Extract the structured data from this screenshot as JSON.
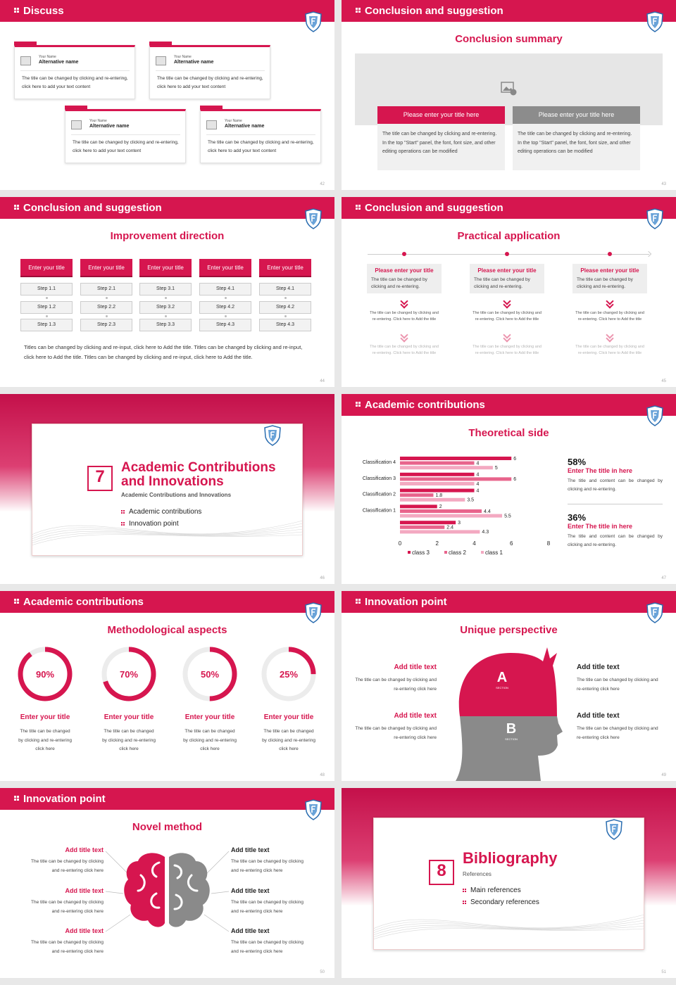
{
  "slides": [
    {
      "page": "42",
      "header": "Discuss",
      "cards": [
        {
          "label": "Your Name",
          "name": "Alternative name",
          "text": "The title can be changed by clicking and re-entering, click here to add your text content"
        },
        {
          "label": "Your Name",
          "name": "Alternative name",
          "text": "The title can be changed by clicking and re-entering, click here to add your text content"
        },
        {
          "label": "Your Name",
          "name": "Alternative name",
          "text": "The title can be changed by clicking and re-entering, click here to add your text content"
        },
        {
          "label": "Your Name",
          "name": "Alternative name",
          "text": "The title can be changed by clicking and re-entering, click here to add your text content"
        }
      ]
    },
    {
      "page": "43",
      "header": "Conclusion and suggestion",
      "title": "Conclusion summary",
      "columns": [
        {
          "title": "Please enter your title here",
          "text": "The title can be changed by clicking and re-entering. In the top \"Start\" panel, the font, font size, and other editing operations can be modified"
        },
        {
          "title": "Please enter your title here",
          "text": "The title can be changed by clicking and re-entering. In the top \"Start\" panel, the font, font size, and other editing operations can be modified"
        }
      ]
    },
    {
      "page": "44",
      "header": "Conclusion and suggestion",
      "title": "Improvement direction",
      "columns": [
        {
          "title": "Enter your title",
          "steps": [
            "Step 1.1",
            "Step 1.2",
            "Step 1.3"
          ]
        },
        {
          "title": "Enter your title",
          "steps": [
            "Step 2.1",
            "Step 2.2",
            "Step 2.3"
          ]
        },
        {
          "title": "Enter your title",
          "steps": [
            "Step 3.1",
            "Step 3.2",
            "Step 3.3"
          ]
        },
        {
          "title": "Enter your title",
          "steps": [
            "Step 4.1",
            "Step 4.2",
            "Step 4.3"
          ]
        },
        {
          "title": "Enter your title",
          "steps": [
            "Step 4.1",
            "Step 4.2",
            "Step 4.3"
          ]
        }
      ],
      "text": "Titles can be changed by clicking and re-input, click here to Add the title. Titles can be changed by clicking and re-input, click here to Add the title. Titles can be changed by clicking and re-input, click here to Add the title."
    },
    {
      "page": "45",
      "header": "Conclusion and suggestion",
      "title": "Practical application",
      "columns": [
        {
          "title": "Please enter your title",
          "text": "The title can be changed by clicking and re-entering.",
          "details": [
            "The title can be changed by clicking and re-entering. Click here to Add the title",
            "The title can be changed by clicking and re-entering. Click here to Add the title"
          ]
        },
        {
          "title": "Please enter your title",
          "text": "The title can be changed by clicking and re-entering.",
          "details": [
            "The title can be changed by clicking and re-entering. Click here to Add the title",
            "The title can be changed by clicking and re-entering. Click here to Add the title"
          ]
        },
        {
          "title": "Please enter your title",
          "text": "The title can be changed by clicking and re-entering.",
          "details": [
            "The title can be changed by clicking and re-entering. Click here to Add the title",
            "The title can be changed by clicking and re-entering. Click here to Add the title"
          ]
        }
      ]
    },
    {
      "page": "46",
      "number": "7",
      "title": "Academic Contributions and Innovations",
      "subtitle": "Academic Contributions and Innovations",
      "items": [
        "Academic contributions",
        "Innovation point"
      ]
    },
    {
      "page": "47",
      "header": "Academic contributions",
      "title": "Theoretical side",
      "chart": {
        "type": "bar",
        "orientation": "horizontal",
        "categories": [
          "Classification 4",
          "Classification 3",
          "Classification 2",
          "Classification 1",
          null
        ],
        "series": [
          {
            "name": "class 3",
            "color": "#d6164f",
            "values": [
              6,
              4,
              4,
              2,
              3
            ]
          },
          {
            "name": "class 2",
            "color": "#e8648c",
            "values": [
              4,
              6,
              1.8,
              4.4,
              2.4
            ]
          },
          {
            "name": "class 1",
            "color": "#f3a9c1",
            "values": [
              5,
              4,
              3.5,
              5.5,
              4.3
            ]
          }
        ],
        "xlim": [
          0,
          8
        ],
        "xticks": [
          0,
          2,
          4,
          6,
          8
        ]
      },
      "stats": [
        {
          "value": "58%",
          "title": "Enter The title in here",
          "text": "The title and content can be changed by clicking and re-entering."
        },
        {
          "value": "36%",
          "title": "Enter The title in here",
          "text": "The title and content can be changed by clicking and re-entering."
        }
      ]
    },
    {
      "page": "48",
      "header": "Academic contributions",
      "title": "Methodological aspects",
      "rings": [
        {
          "percent": 90,
          "label": "90%",
          "title": "Enter your title",
          "text": "The title can be changed by clicking and re-entering click here"
        },
        {
          "percent": 70,
          "label": "70%",
          "title": "Enter your title",
          "text": "The title can be changed by clicking and re-entering click here"
        },
        {
          "percent": 50,
          "label": "50%",
          "title": "Enter your title",
          "text": "The title can be changed by clicking and re-entering click here"
        },
        {
          "percent": 25,
          "label": "25%",
          "title": "Enter your title",
          "text": "The title can be changed by clicking and re-entering click here"
        }
      ]
    },
    {
      "page": "49",
      "header": "Innovation point",
      "title": "Unique perspective",
      "items": [
        {
          "title": "Add title text",
          "text": "The title can be changed by clicking and re-entering click here"
        },
        {
          "title": "Add title text",
          "text": "The title can be changed by clicking and re-entering click here"
        },
        {
          "title": "Add title text",
          "text": "The title can be changed by clicking and re-entering click here"
        },
        {
          "title": "Add title text",
          "text": "The title can be changed by clicking and re-entering click here"
        }
      ],
      "head": [
        {
          "letter": "A",
          "label": "SECTION"
        },
        {
          "letter": "B",
          "label": "SECTION"
        }
      ]
    },
    {
      "page": "50",
      "header": "Innovation point",
      "title": "Novel method",
      "items": [
        {
          "title": "Add title text",
          "text": "The title can be changed by clicking and re-entering click here"
        },
        {
          "title": "Add title text",
          "text": "The title can be changed by clicking and re-entering click here"
        },
        {
          "title": "Add title text",
          "text": "The title can be changed by clicking and re-entering click here"
        },
        {
          "title": "Add title text",
          "text": "The title can be changed by clicking and re-entering click here"
        },
        {
          "title": "Add title text",
          "text": "The title can be changed by clicking and re-entering click here"
        },
        {
          "title": "Add title text",
          "text": "The title can be changed by clicking and re-entering click here"
        }
      ]
    },
    {
      "page": "51",
      "number": "8",
      "title": "Bibliography",
      "subtitle": "References",
      "items": [
        "Main references",
        "Secondary references"
      ]
    }
  ]
}
